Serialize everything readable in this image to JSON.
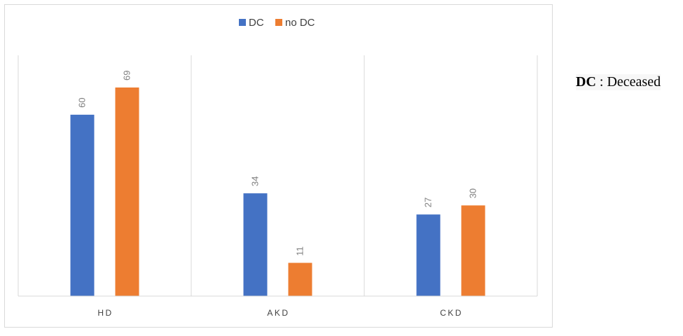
{
  "chart_data": {
    "type": "bar",
    "categories": [
      "HD",
      "AKD",
      "CKD"
    ],
    "series": [
      {
        "name": "DC",
        "values": [
          60,
          34,
          27
        ],
        "color": "#4472c4"
      },
      {
        "name": "no DC",
        "values": [
          69,
          11,
          30
        ],
        "color": "#ed7d31"
      }
    ],
    "ylim": [
      0,
      69
    ],
    "title": "",
    "xlabel": "",
    "ylabel": "",
    "legend_position": "top-center",
    "grid": "vertical category separators",
    "data_labels": true
  },
  "note": {
    "term": "DC",
    "separator": " : ",
    "definition": "Deceased"
  }
}
